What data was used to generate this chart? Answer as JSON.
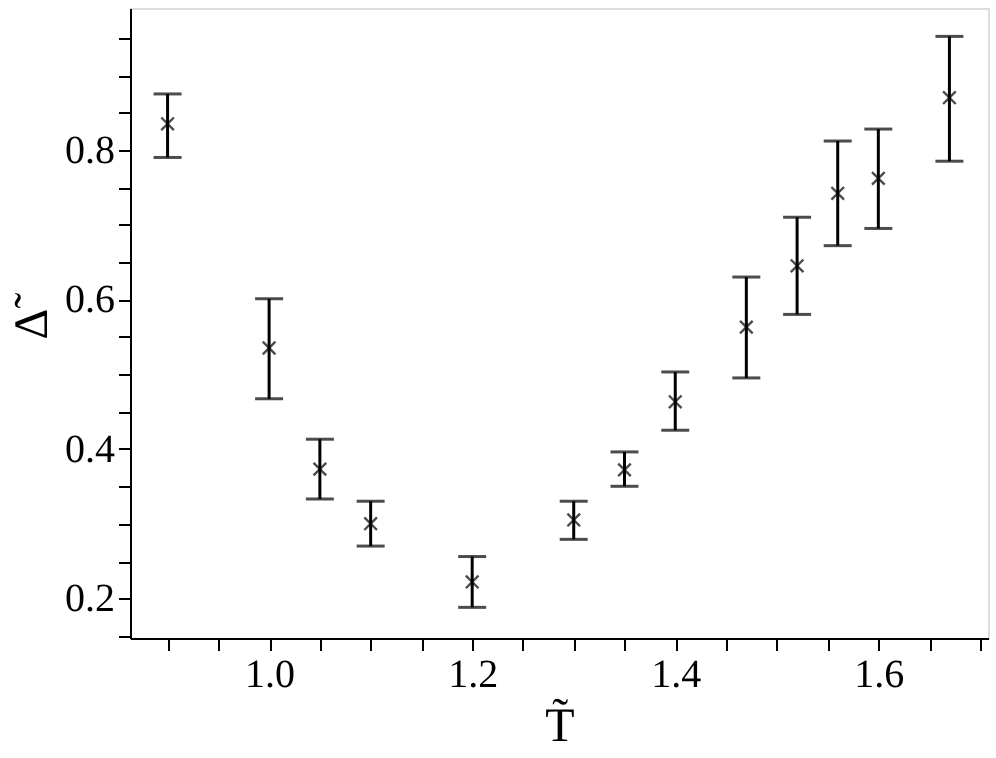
{
  "chart_data": {
    "type": "scatter",
    "xlabel": "T̃",
    "ylabel": "Δ̃",
    "x": [
      0.9,
      1.0,
      1.05,
      1.1,
      1.2,
      1.3,
      1.35,
      1.4,
      1.47,
      1.52,
      1.56,
      1.6,
      1.67
    ],
    "series": [
      {
        "color": "#000000",
        "values": [
          0.835,
          0.535,
          0.373,
          0.3,
          0.222,
          0.305,
          0.372,
          0.463,
          0.563,
          0.645,
          0.742,
          0.762,
          0.87
        ],
        "errors": [
          [
            0.79,
            0.875
          ],
          [
            0.467,
            0.601
          ],
          [
            0.333,
            0.413
          ],
          [
            0.27,
            0.33
          ],
          [
            0.188,
            0.256
          ],
          [
            0.279,
            0.33
          ],
          [
            0.35,
            0.396
          ],
          [
            0.425,
            0.503
          ],
          [
            0.495,
            0.63
          ],
          [
            0.58,
            0.71
          ],
          [
            0.672,
            0.812
          ],
          [
            0.695,
            0.828
          ],
          [
            0.785,
            0.952
          ]
        ]
      }
    ],
    "marker": "cross",
    "grid": false,
    "xlim": [
      0.863,
      1.708
    ],
    "ylim": [
      0.147,
      0.99
    ],
    "xticks": [
      {
        "value": 0.9,
        "label": null
      },
      {
        "value": 0.95,
        "label": null
      },
      {
        "value": 1,
        "label": "1.0"
      },
      {
        "value": 1.05,
        "label": null
      },
      {
        "value": 1.1,
        "label": null
      },
      {
        "value": 1.15,
        "label": null
      },
      {
        "value": 1.2,
        "label": "1.2"
      },
      {
        "value": 1.25,
        "label": null
      },
      {
        "value": 1.3,
        "label": null
      },
      {
        "value": 1.35,
        "label": null
      },
      {
        "value": 1.4,
        "label": "1.4"
      },
      {
        "value": 1.45,
        "label": null
      },
      {
        "value": 1.5,
        "label": null
      },
      {
        "value": 1.55,
        "label": null
      },
      {
        "value": 1.6,
        "label": "1.6"
      },
      {
        "value": 1.65,
        "label": null
      },
      {
        "value": 1.7,
        "label": null
      }
    ],
    "yticks": [
      {
        "value": 0.15,
        "label": null
      },
      {
        "value": 0.2,
        "label": "0.2"
      },
      {
        "value": 0.25,
        "label": null
      },
      {
        "value": 0.3,
        "label": null
      },
      {
        "value": 0.35,
        "label": null
      },
      {
        "value": 0.4,
        "label": "0.4"
      },
      {
        "value": 0.45,
        "label": null
      },
      {
        "value": 0.5,
        "label": null
      },
      {
        "value": 0.55,
        "label": null
      },
      {
        "value": 0.6,
        "label": "0.6"
      },
      {
        "value": 0.65,
        "label": null
      },
      {
        "value": 0.7,
        "label": null
      },
      {
        "value": 0.75,
        "label": null
      },
      {
        "value": 0.8,
        "label": "0.8"
      },
      {
        "value": 0.85,
        "label": null
      },
      {
        "value": 0.9,
        "label": null
      },
      {
        "value": 0.95,
        "label": null
      }
    ]
  }
}
